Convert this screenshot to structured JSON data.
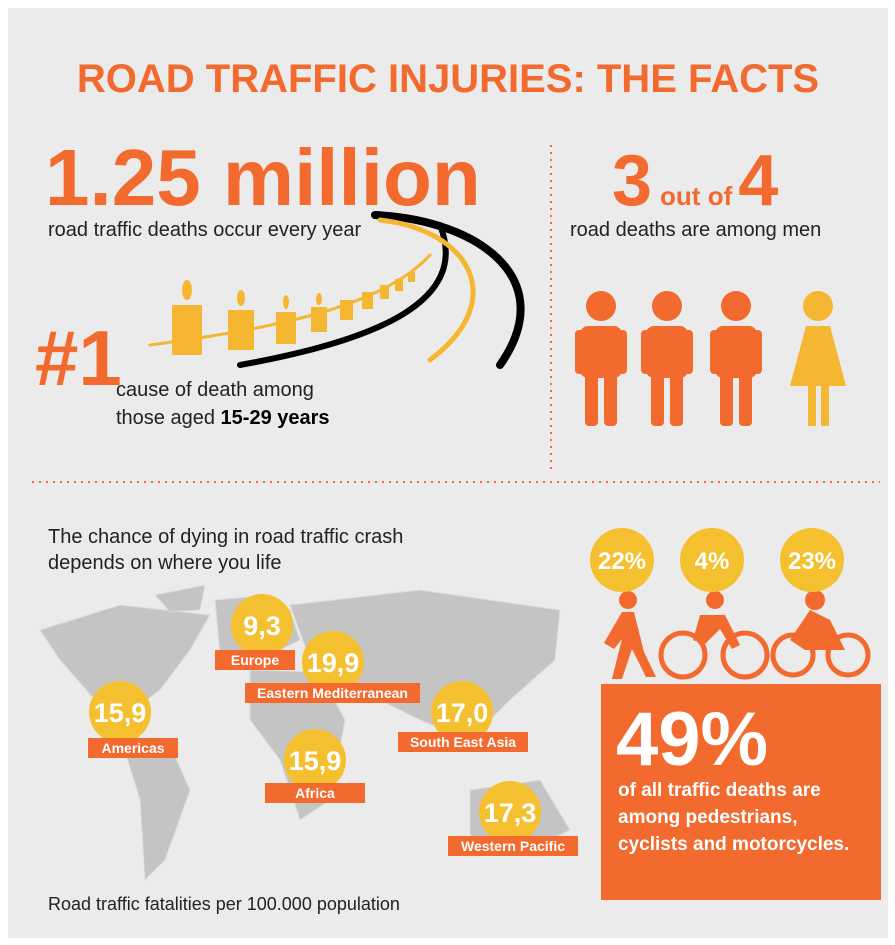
{
  "title": "ROAD TRAFFIC INJURIES: THE FACTS",
  "deaths": {
    "number": "1.25 million",
    "text": "road traffic deaths occur every year"
  },
  "rank": {
    "number": "#1",
    "line1": "cause of death among",
    "line2": "those aged",
    "age": "15-29 years"
  },
  "men": {
    "count": "3",
    "middle": "out of",
    "total": "4",
    "text": "road deaths are among men"
  },
  "map": {
    "intro": [
      "The chance of dying in road traffic crash",
      "depends on where you life"
    ],
    "regions": [
      {
        "value": "9,3",
        "name": "Europe"
      },
      {
        "value": "19,9",
        "name": "Eastern Mediterranean"
      },
      {
        "value": "15,9",
        "name": "Americas"
      },
      {
        "value": "15,9",
        "name": "Africa"
      },
      {
        "value": "17,0",
        "name": "South East Asia"
      },
      {
        "value": "17,3",
        "name": "Western Pacific"
      }
    ],
    "footnote": "Road traffic fatalities per 100.000 population"
  },
  "modes": {
    "percentages": [
      "22%",
      "4%",
      "23%"
    ],
    "total": "49%",
    "text": [
      "of all traffic deaths are",
      "among pedestrians,",
      "cyclists and motorcycles."
    ]
  }
}
